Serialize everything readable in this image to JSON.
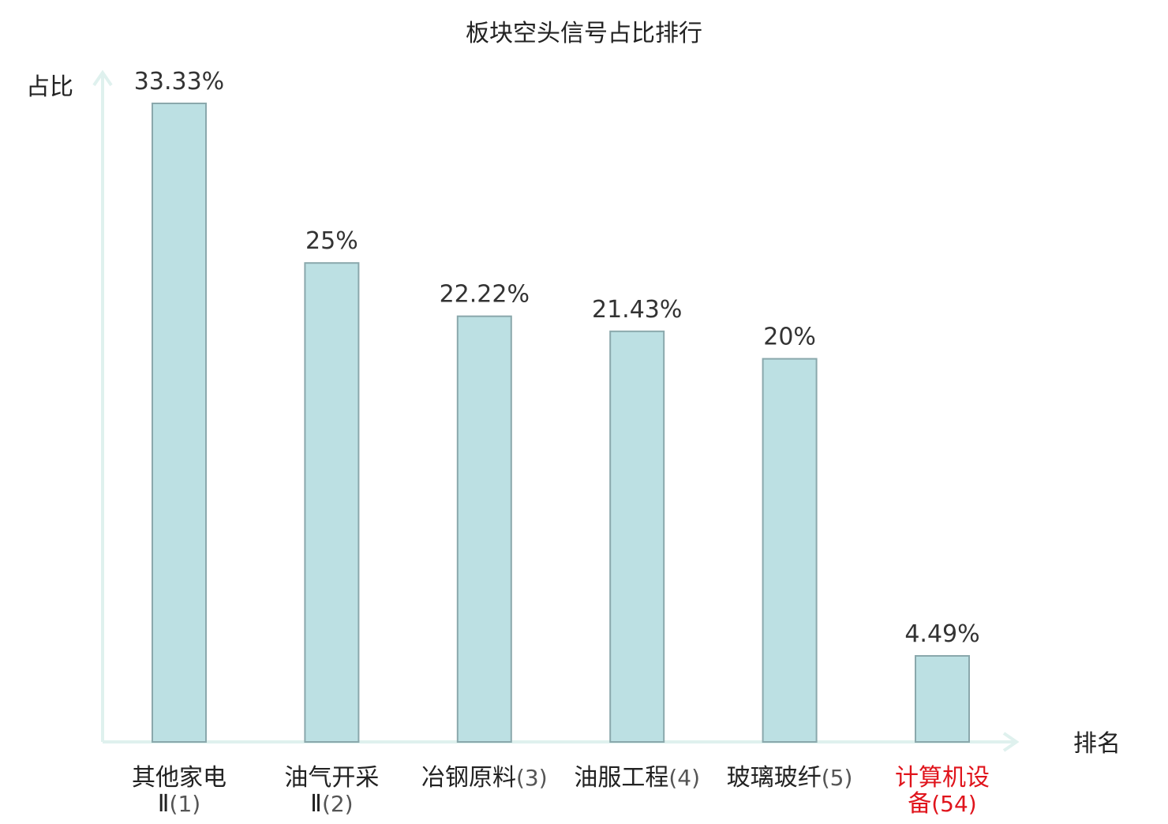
{
  "chart_data": {
    "type": "bar",
    "title": "板块空头信号占比排行",
    "ylabel": "占比",
    "xlabel": "排名",
    "ylim": [
      0,
      35
    ],
    "grid": false,
    "categories": [
      {
        "name_lines": [
          "其他家电",
          "Ⅱ"
        ],
        "rank": "(1)",
        "highlight": false
      },
      {
        "name_lines": [
          "油气开采",
          "Ⅱ"
        ],
        "rank": "(2)",
        "highlight": false
      },
      {
        "name_lines": [
          "冶钢原料"
        ],
        "rank": "(3)",
        "highlight": false
      },
      {
        "name_lines": [
          "油服工程"
        ],
        "rank": "(4)",
        "highlight": false
      },
      {
        "name_lines": [
          "玻璃玻纤"
        ],
        "rank": "(5)",
        "highlight": false
      },
      {
        "name_lines": [
          "计算机设",
          "备"
        ],
        "rank": "(54)",
        "highlight": true
      }
    ],
    "values": [
      33.33,
      25,
      22.22,
      21.43,
      20,
      4.49
    ],
    "value_labels": [
      "33.33%",
      "25%",
      "22.22%",
      "21.43%",
      "20%",
      "4.49%"
    ]
  },
  "colors": {
    "bar_fill": "#bce0e3",
    "bar_stroke": "#8aa8ac",
    "axis": "#dff1ee",
    "text": "#222222",
    "value_text": "#333333",
    "rank_text": "#555555",
    "highlight": "#e0141c"
  }
}
